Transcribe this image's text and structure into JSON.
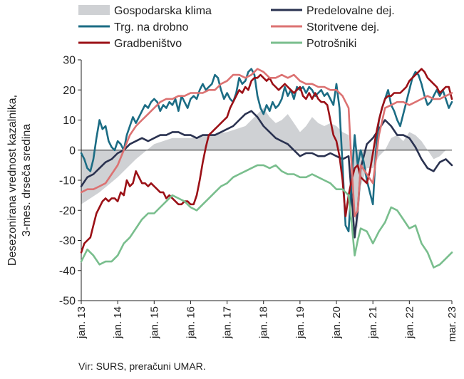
{
  "chart_data": {
    "type": "line",
    "ylabel_lines": [
      "Desezonirana vrednost kazalnika,",
      "3-mes. drseča sredina"
    ],
    "ylim": [
      -50,
      30
    ],
    "yticks": [
      -50,
      -40,
      -30,
      -20,
      -10,
      0,
      10,
      20,
      30
    ],
    "x_tick_labels": [
      "jan. 13",
      "jan. 14",
      "jan. 15",
      "jan. 16",
      "jan. 17",
      "jan. 18",
      "jan. 19",
      "jan. 20",
      "jan. 21",
      "jan. 22",
      "mar. 23"
    ],
    "x_tick_positions": [
      0,
      12,
      24,
      36,
      48,
      60,
      72,
      84,
      96,
      108,
      122
    ],
    "x_range": [
      0,
      122
    ],
    "legend_position": "top",
    "area": {
      "name": "Gospodarska klima",
      "color": "#cfd1d4",
      "x": [
        0,
        6,
        12,
        18,
        24,
        30,
        36,
        42,
        48,
        54,
        56,
        58,
        60,
        62,
        64,
        66,
        68,
        70,
        72,
        74,
        76,
        78,
        80,
        82,
        84,
        86,
        88,
        89,
        90,
        91,
        92,
        94,
        96,
        98,
        100,
        102,
        104,
        106,
        108,
        110,
        112,
        114,
        116,
        118,
        120,
        122
      ],
      "values": [
        -18,
        -14,
        -9,
        -3,
        2,
        4,
        4,
        5,
        6,
        8,
        10,
        12,
        14,
        11,
        9,
        10,
        12,
        9,
        6,
        8,
        11,
        9,
        8,
        9,
        8,
        6,
        5,
        -5,
        -22,
        -26,
        -12,
        -6,
        -6,
        -2,
        0,
        4,
        5,
        3,
        6,
        5,
        3,
        0,
        -3,
        -2,
        0,
        0
      ]
    },
    "series": [
      {
        "name": "Predelovalne dej.",
        "color": "#2a3250",
        "x": [
          0,
          2,
          4,
          6,
          8,
          10,
          12,
          14,
          16,
          18,
          20,
          22,
          24,
          26,
          28,
          30,
          32,
          34,
          36,
          38,
          40,
          42,
          44,
          46,
          48,
          50,
          52,
          54,
          56,
          58,
          60,
          62,
          64,
          66,
          68,
          70,
          72,
          74,
          76,
          78,
          80,
          82,
          84,
          86,
          88,
          89,
          90,
          91,
          92,
          94,
          96,
          98,
          100,
          102,
          104,
          106,
          108,
          110,
          112,
          114,
          116,
          118,
          120,
          122
        ],
        "values": [
          -12,
          -9,
          -8,
          -6,
          -4,
          -3,
          -1,
          0,
          2,
          3,
          4,
          3,
          4,
          5,
          5,
          6,
          6,
          5,
          5,
          4,
          5,
          5,
          5,
          6,
          7,
          8,
          10,
          12,
          13,
          11,
          8,
          6,
          4,
          3,
          2,
          0,
          -2,
          -1,
          -1,
          -2,
          -2,
          -1,
          -2,
          -3,
          -2,
          -15,
          -29,
          -20,
          -6,
          2,
          4,
          7,
          10,
          8,
          5,
          5,
          4,
          1,
          -3,
          -6,
          -7,
          -4,
          -3,
          -5
        ]
      },
      {
        "name": "Trg. na drobno",
        "color": "#1b6c84",
        "x": [
          0,
          1,
          2,
          3,
          4,
          5,
          6,
          7,
          8,
          9,
          10,
          11,
          12,
          13,
          14,
          15,
          16,
          17,
          18,
          19,
          20,
          21,
          22,
          23,
          24,
          25,
          26,
          27,
          28,
          29,
          30,
          31,
          32,
          33,
          34,
          35,
          36,
          37,
          38,
          39,
          40,
          41,
          42,
          43,
          44,
          45,
          46,
          47,
          48,
          49,
          50,
          51,
          52,
          53,
          54,
          55,
          56,
          57,
          58,
          59,
          60,
          61,
          62,
          63,
          64,
          65,
          66,
          67,
          68,
          69,
          70,
          71,
          72,
          73,
          74,
          75,
          76,
          77,
          78,
          79,
          80,
          81,
          82,
          83,
          84,
          85,
          86,
          87,
          88,
          89,
          90,
          91,
          92,
          93,
          94,
          95,
          96,
          97,
          98,
          99,
          100,
          101,
          102,
          103,
          104,
          105,
          106,
          107,
          108,
          109,
          110,
          111,
          112,
          113,
          114,
          115,
          116,
          117,
          118,
          119,
          120,
          121,
          122
        ],
        "values": [
          -1,
          -3,
          -6,
          -7,
          -3,
          4,
          10,
          7,
          8,
          3,
          1,
          0,
          3,
          2,
          0,
          5,
          8,
          11,
          9,
          11,
          13,
          15,
          14,
          16,
          17,
          16,
          13,
          15,
          14,
          16,
          15,
          17,
          13,
          18,
          16,
          14,
          17,
          18,
          17,
          20,
          22,
          20,
          21,
          22,
          25,
          24,
          20,
          17,
          19,
          17,
          16,
          19,
          24,
          22,
          23,
          26,
          27,
          25,
          18,
          14,
          12,
          15,
          13,
          16,
          14,
          15,
          17,
          21,
          18,
          20,
          17,
          21,
          20,
          21,
          19,
          21,
          20,
          18,
          19,
          20,
          18,
          19,
          17,
          15,
          22,
          14,
          -5,
          -25,
          -27,
          -10,
          5,
          -5,
          0,
          -4,
          -10,
          -14,
          -18,
          0,
          10,
          14,
          17,
          20,
          15,
          13,
          10,
          8,
          12,
          16,
          20,
          24,
          26,
          25,
          22,
          18,
          15,
          16,
          18,
          20,
          18,
          20,
          17,
          14,
          16
        ]
      },
      {
        "name": "Gradbeništvo",
        "color": "#9b1016",
        "x": [
          0,
          1,
          2,
          3,
          4,
          5,
          6,
          7,
          8,
          9,
          10,
          11,
          12,
          13,
          14,
          15,
          16,
          17,
          18,
          19,
          20,
          21,
          22,
          23,
          24,
          25,
          26,
          27,
          28,
          29,
          30,
          31,
          32,
          33,
          34,
          35,
          36,
          37,
          38,
          39,
          40,
          41,
          42,
          43,
          44,
          45,
          46,
          47,
          48,
          49,
          50,
          51,
          52,
          53,
          54,
          55,
          56,
          57,
          58,
          59,
          60,
          61,
          62,
          63,
          64,
          65,
          66,
          67,
          68,
          69,
          70,
          71,
          72,
          73,
          74,
          75,
          76,
          77,
          78,
          79,
          80,
          81,
          82,
          83,
          84,
          85,
          86,
          87,
          88,
          89,
          90,
          91,
          92,
          93,
          94,
          95,
          96,
          97,
          98,
          99,
          100,
          101,
          102,
          103,
          104,
          105,
          106,
          107,
          108,
          109,
          110,
          111,
          112,
          113,
          114,
          115,
          116,
          117,
          118,
          119,
          120,
          121,
          122
        ],
        "values": [
          -34,
          -31,
          -30,
          -29,
          -25,
          -21,
          -19,
          -17,
          -16,
          -17,
          -16,
          -16,
          -17,
          -14,
          -15,
          -10,
          -12,
          -11,
          -7,
          -9,
          -11,
          -11,
          -12,
          -11,
          -12,
          -13,
          -14,
          -14,
          -16,
          -15,
          -16,
          -17,
          -18,
          -18,
          -17,
          -17,
          -18,
          -18,
          -15,
          -10,
          -4,
          1,
          5,
          6,
          7,
          8,
          9,
          10,
          11,
          14,
          16,
          18,
          20,
          19,
          21,
          20,
          23,
          24,
          24,
          25,
          24,
          23,
          24,
          22,
          21,
          20,
          21,
          22,
          21,
          20,
          19,
          20,
          21,
          18,
          17,
          19,
          17,
          19,
          17,
          16,
          16,
          15,
          10,
          5,
          3,
          -2,
          -10,
          -22,
          -15,
          -10,
          -6,
          -5,
          -9,
          -10,
          -11,
          -7,
          -1,
          5,
          10,
          14,
          17,
          18,
          18,
          19,
          19,
          19,
          20,
          21,
          23,
          24,
          25,
          26,
          27,
          26,
          24,
          23,
          22,
          21,
          19,
          20,
          21,
          21,
          17
        ]
      },
      {
        "name": "Storitvene dej.",
        "color": "#dc7272",
        "x": [
          0,
          2,
          4,
          6,
          8,
          10,
          12,
          14,
          16,
          18,
          20,
          22,
          24,
          26,
          28,
          30,
          32,
          34,
          36,
          38,
          40,
          42,
          44,
          46,
          48,
          50,
          52,
          54,
          56,
          58,
          60,
          62,
          64,
          66,
          68,
          70,
          72,
          74,
          76,
          78,
          80,
          82,
          84,
          86,
          88,
          89,
          90,
          91,
          92,
          94,
          96,
          98,
          100,
          102,
          104,
          106,
          108,
          110,
          112,
          114,
          116,
          118,
          120,
          122
        ],
        "values": [
          -14,
          -13,
          -13,
          -12,
          -11,
          -8,
          -5,
          0,
          5,
          8,
          10,
          12,
          14,
          16,
          17,
          17,
          18,
          18,
          19,
          19,
          19,
          20,
          20,
          22,
          23,
          25,
          25,
          24,
          25,
          27,
          26,
          24,
          24,
          25,
          24,
          25,
          23,
          22,
          22,
          21,
          21,
          20,
          20,
          18,
          14,
          -5,
          -22,
          -20,
          -5,
          -8,
          -11,
          5,
          14,
          15,
          16,
          16,
          15,
          16,
          17,
          18,
          17,
          17,
          18,
          19
        ]
      },
      {
        "name": "Potrošniki",
        "color": "#79be8d",
        "x": [
          0,
          2,
          4,
          6,
          8,
          10,
          12,
          14,
          16,
          18,
          20,
          22,
          24,
          26,
          28,
          30,
          32,
          34,
          36,
          38,
          40,
          42,
          44,
          46,
          48,
          50,
          52,
          54,
          56,
          58,
          60,
          62,
          64,
          66,
          68,
          70,
          72,
          74,
          76,
          78,
          80,
          82,
          84,
          86,
          88,
          89,
          90,
          91,
          92,
          94,
          96,
          98,
          100,
          102,
          104,
          106,
          108,
          110,
          112,
          114,
          116,
          118,
          120,
          122
        ],
        "values": [
          -37,
          -33,
          -35,
          -38,
          -37,
          -37,
          -35,
          -31,
          -29,
          -26,
          -23,
          -21,
          -21,
          -19,
          -17,
          -15,
          -16,
          -17,
          -19,
          -20,
          -18,
          -16,
          -14,
          -12,
          -11,
          -9,
          -8,
          -7,
          -6,
          -5,
          -5,
          -6,
          -5,
          -7,
          -8,
          -8,
          -9,
          -9,
          -8,
          -9,
          -10,
          -11,
          -13,
          -13,
          -15,
          -24,
          -35,
          -30,
          -26,
          -27,
          -31,
          -27,
          -24,
          -19,
          -20,
          -23,
          -26,
          -25,
          -31,
          -34,
          -39,
          -38,
          -36,
          -34
        ]
      }
    ],
    "legend_items": [
      {
        "label": "Gospodarska klima",
        "kind": "area",
        "color": "#cfd1d4"
      },
      {
        "label": "Predelovalne dej.",
        "kind": "line",
        "color": "#2a3250"
      },
      {
        "label": "Trg. na drobno",
        "kind": "line",
        "color": "#1b6c84"
      },
      {
        "label": "Storitvene dej.",
        "kind": "line",
        "color": "#dc7272"
      },
      {
        "label": "Gradbeništvo",
        "kind": "line",
        "color": "#9b1016"
      },
      {
        "label": "Potrošniki",
        "kind": "line",
        "color": "#79be8d"
      }
    ],
    "source": "Vir: SURS, preračuni UMAR."
  }
}
